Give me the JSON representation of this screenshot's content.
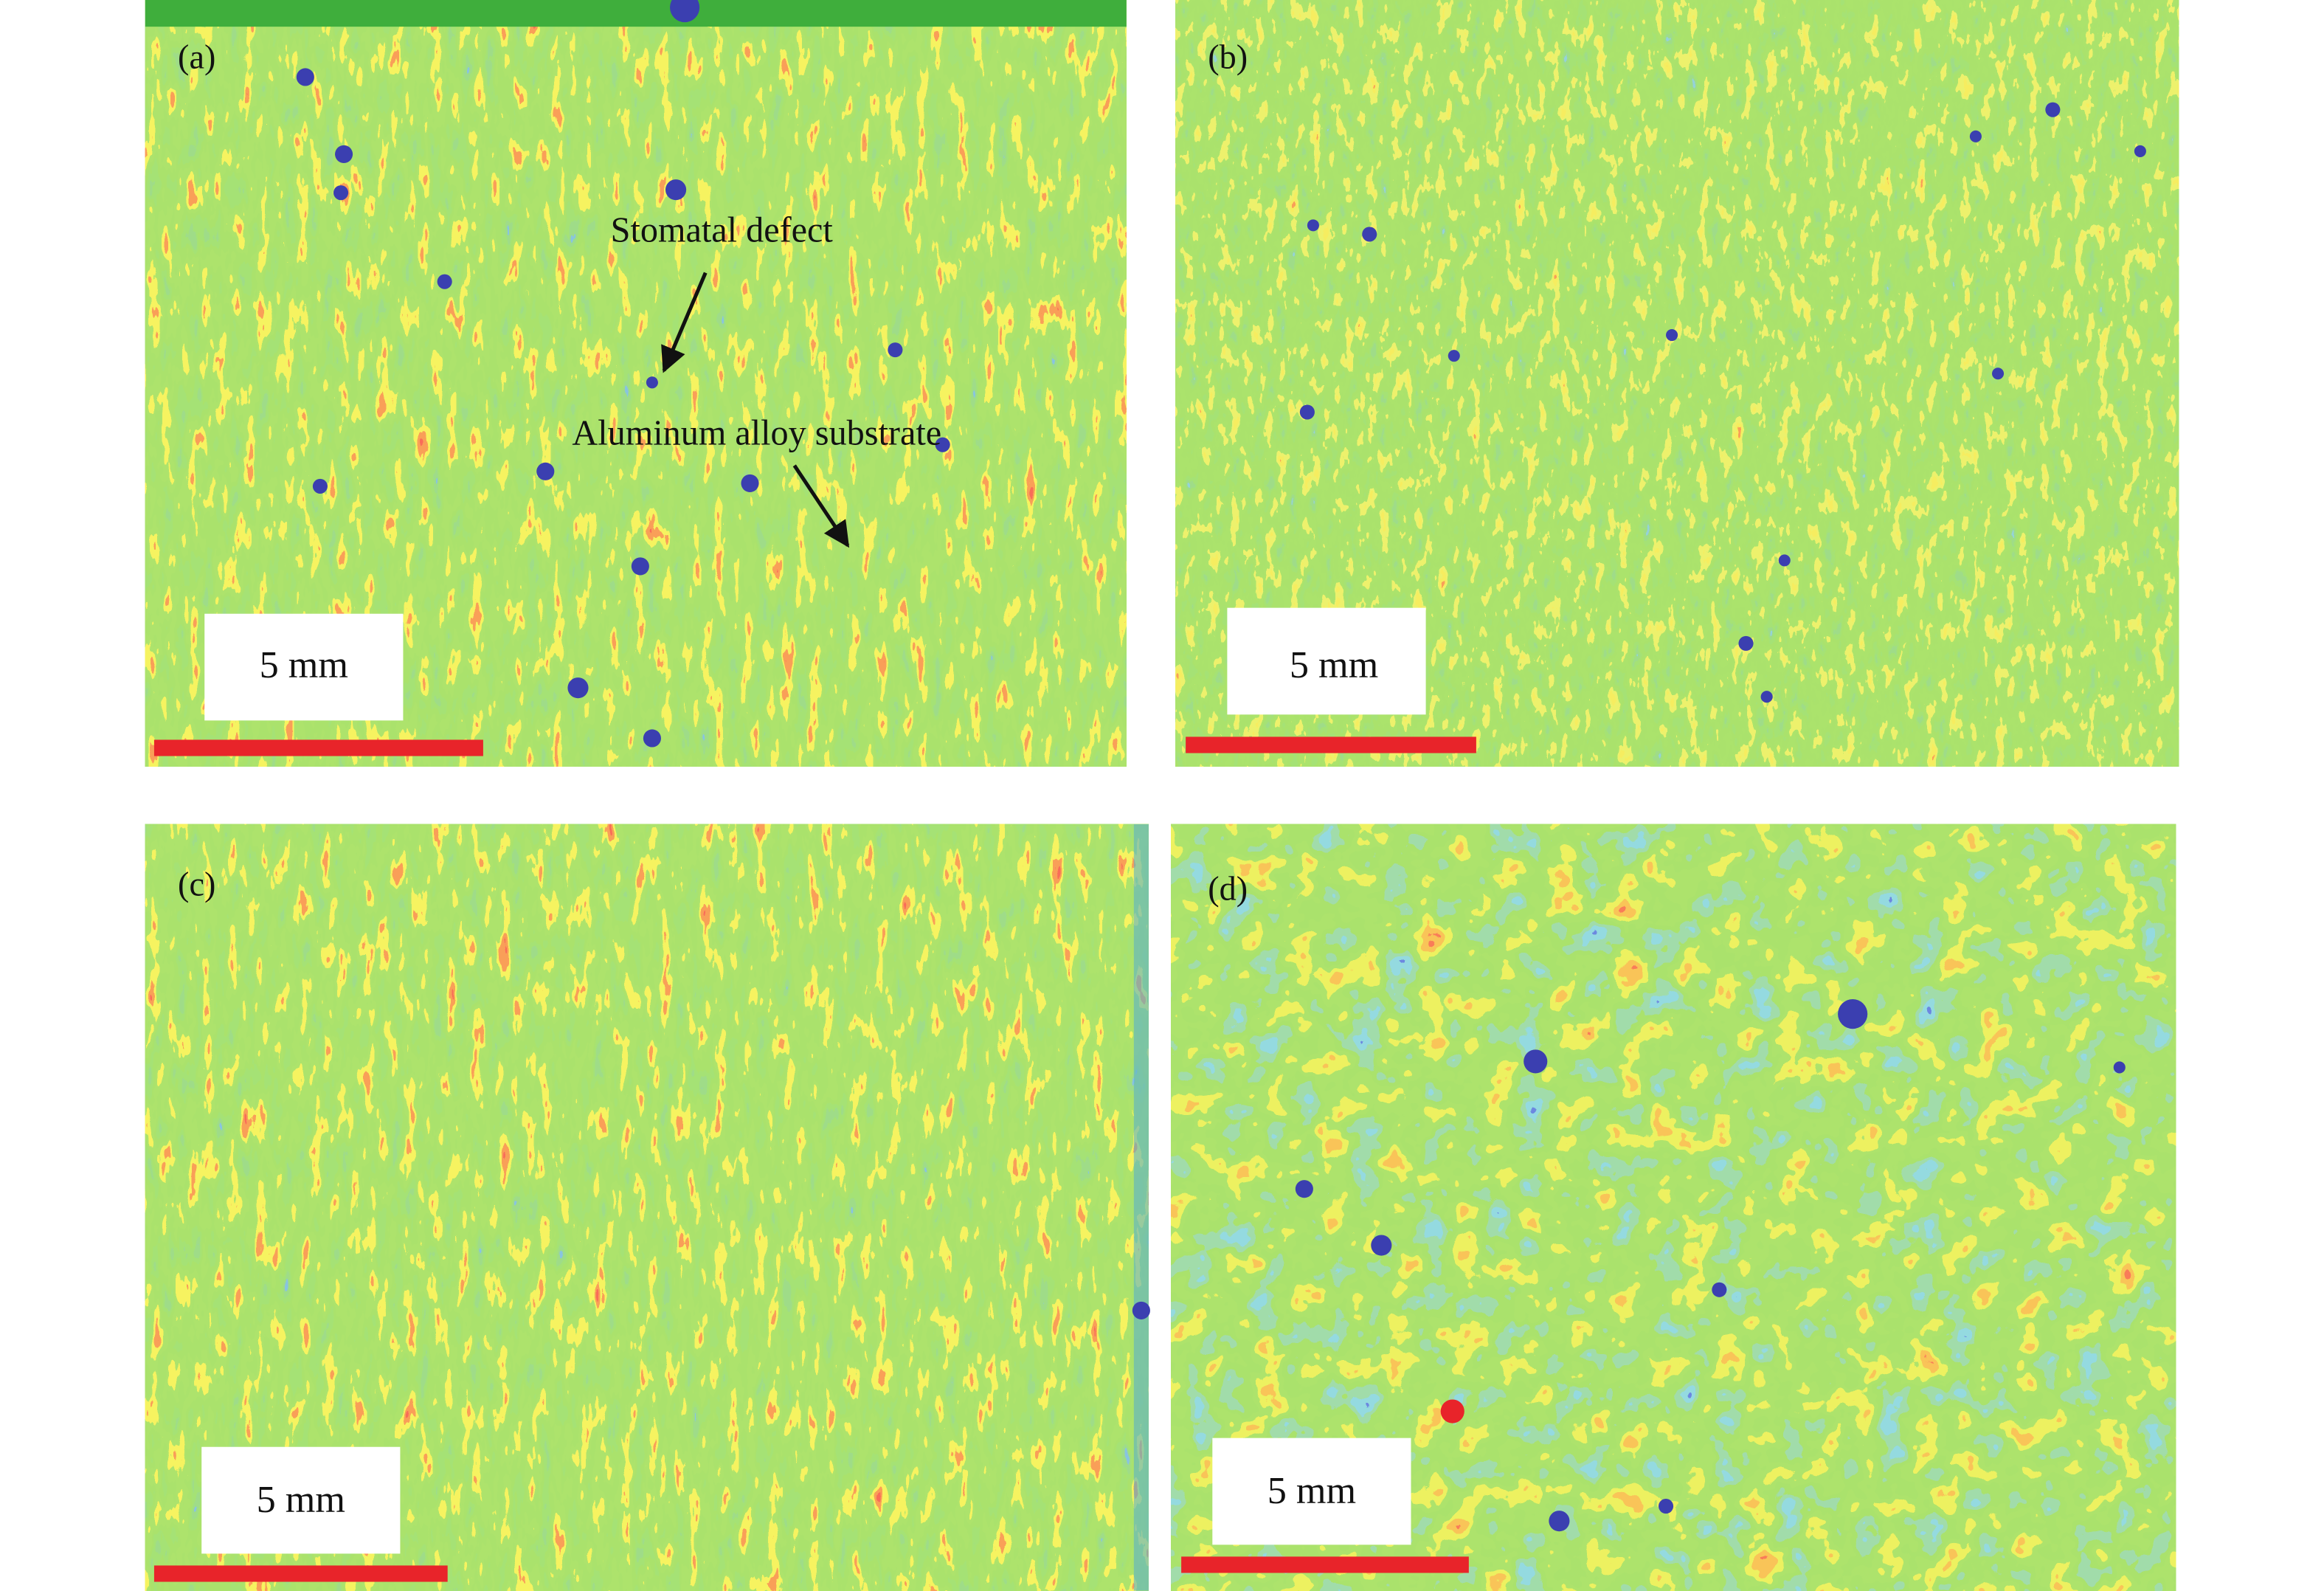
{
  "panels": [
    {
      "label": "(a)",
      "scale_bar": "5 mm",
      "annotations": [
        "Stomatal defect",
        "Aluminum alloy substrate"
      ]
    },
    {
      "label": "(b)",
      "scale_bar": "5 mm"
    },
    {
      "label": "(c)",
      "scale_bar": "5 mm"
    },
    {
      "label": "(d)",
      "scale_bar": "5 mm"
    }
  ]
}
